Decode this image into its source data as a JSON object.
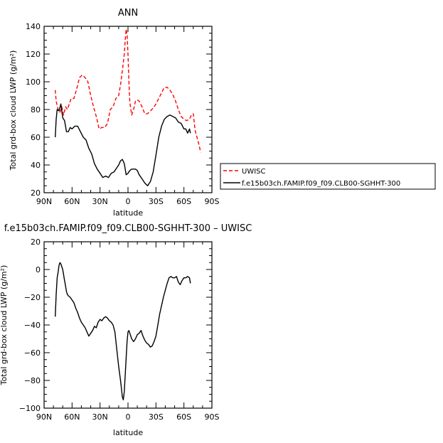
{
  "chart_data": [
    {
      "type": "line",
      "title": "ANN",
      "xlabel": "latitude",
      "ylabel": "Total grd-box cloud LWP (g/m²)",
      "xlim": [
        90,
        -90
      ],
      "ylim": [
        20,
        140
      ],
      "x_ticks": [
        "90N",
        "60N",
        "30N",
        "0",
        "30S",
        "60S",
        "90S"
      ],
      "y_ticks": [
        "20",
        "40",
        "60",
        "80",
        "100",
        "120",
        "140"
      ],
      "legend": [
        "UWISC",
        "f.e15b03ch.FAMIP.f09_f09.CLB00-SGHHT-300"
      ],
      "series": [
        {
          "name": "UWISC",
          "color": "#ff0000",
          "dash": "dashed",
          "x": [
            78,
            77,
            75,
            73,
            71,
            69,
            67,
            65,
            63,
            61,
            58,
            55,
            52,
            49,
            46,
            43,
            40,
            37,
            34,
            31,
            28,
            25,
            22,
            19,
            16,
            13,
            10,
            8,
            6,
            4,
            3,
            2,
            1,
            0,
            -1,
            -2,
            -4,
            -6,
            -8,
            -10,
            -12,
            -15,
            -18,
            -21,
            -24,
            -27,
            -30,
            -33,
            -36,
            -39,
            -42,
            -45,
            -48,
            -51,
            -54,
            -57,
            -60,
            -63,
            -66,
            -68,
            -70,
            -72,
            -74,
            -76,
            -78
          ],
          "y": [
            94,
            86,
            80,
            78,
            82,
            76,
            82,
            80,
            84,
            88,
            88,
            95,
            103,
            105,
            103,
            100,
            90,
            82,
            75,
            66,
            67,
            67,
            70,
            80,
            82,
            88,
            90,
            98,
            108,
            120,
            130,
            138,
            134,
            120,
            100,
            85,
            76,
            80,
            86,
            87,
            86,
            82,
            77,
            77,
            79,
            81,
            84,
            88,
            92,
            96,
            96,
            94,
            91,
            86,
            80,
            75,
            73,
            72,
            73,
            76,
            77,
            65,
            60,
            55,
            49
          ]
        },
        {
          "name": "f.e15b03ch.FAMIP.f09_f09.CLB00-SGHHT-300",
          "color": "#000000",
          "dash": "solid",
          "x": [
            78,
            77,
            76,
            74,
            72,
            70,
            68,
            66,
            64,
            62,
            60,
            57,
            54,
            51,
            48,
            45,
            42,
            39,
            36,
            33,
            30,
            27,
            24,
            21,
            18,
            15,
            12,
            10,
            8,
            6,
            4,
            2,
            0,
            -2,
            -4,
            -6,
            -8,
            -10,
            -12,
            -15,
            -18,
            -21,
            -24,
            -27,
            -30,
            -33,
            -36,
            -39,
            -42,
            -45,
            -48,
            -51,
            -54,
            -57,
            -60,
            -62,
            -64,
            -66,
            -67
          ],
          "y": [
            60,
            73,
            80,
            79,
            84,
            74,
            72,
            64,
            64,
            67,
            66,
            68,
            68,
            64,
            60,
            58,
            52,
            48,
            41,
            37,
            34,
            31,
            32,
            31,
            34,
            35,
            38,
            40,
            43,
            44,
            41,
            33,
            34,
            36,
            37,
            37,
            37,
            36,
            33,
            30,
            27,
            25,
            28,
            35,
            47,
            60,
            68,
            73,
            75,
            76,
            75,
            74,
            71,
            70,
            66,
            66,
            63,
            66,
            63
          ]
        }
      ]
    },
    {
      "type": "line",
      "title": "f.e15b03ch.FAMIP.f09_f09.CLB00-SGHHT-300 – UWISC",
      "xlabel": "latitude",
      "ylabel": "Total grd-box cloud LWP (g/m²)",
      "xlim": [
        90,
        -90
      ],
      "ylim": [
        -100,
        20
      ],
      "x_ticks": [
        "90N",
        "60N",
        "30N",
        "0",
        "30S",
        "60S",
        "90S"
      ],
      "y_ticks": [
        "−100",
        "−80",
        "−60",
        "−40",
        "−20",
        "0",
        "20"
      ],
      "series": [
        {
          "color": "#000000",
          "dash": "solid",
          "x": [
            78,
            77,
            76,
            75,
            74,
            73,
            72,
            71,
            70,
            69,
            68,
            67,
            66,
            65,
            64,
            62,
            60,
            58,
            56,
            54,
            52,
            50,
            48,
            46,
            44,
            42,
            40,
            38,
            36,
            34,
            32,
            30,
            28,
            26,
            24,
            22,
            20,
            18,
            16,
            14,
            12,
            10,
            8,
            6,
            5,
            4,
            3,
            2,
            1,
            0,
            -1,
            -2,
            -3,
            -4,
            -6,
            -8,
            -10,
            -12,
            -14,
            -16,
            -18,
            -20,
            -22,
            -24,
            -26,
            -28,
            -30,
            -32,
            -34,
            -36,
            -38,
            -40,
            -42,
            -44,
            -46,
            -48,
            -50,
            -52,
            -54,
            -56,
            -58,
            -60,
            -62,
            -64,
            -66,
            -67
          ],
          "y": [
            -34,
            -18,
            -6,
            -2,
            3,
            5,
            4,
            2,
            0,
            -4,
            -8,
            -12,
            -16,
            -18,
            -19,
            -20,
            -22,
            -24,
            -28,
            -31,
            -35,
            -38,
            -40,
            -42,
            -45,
            -48,
            -46,
            -44,
            -41,
            -42,
            -38,
            -36,
            -37,
            -35,
            -34,
            -35,
            -37,
            -38,
            -40,
            -45,
            -58,
            -70,
            -80,
            -92,
            -94,
            -88,
            -76,
            -64,
            -52,
            -45,
            -44,
            -46,
            -48,
            -50,
            -52,
            -50,
            -47,
            -46,
            -44,
            -48,
            -51,
            -53,
            -54,
            -56,
            -55,
            -52,
            -48,
            -40,
            -32,
            -26,
            -20,
            -15,
            -10,
            -6,
            -5,
            -6,
            -6,
            -5,
            -9,
            -11,
            -8,
            -6,
            -6,
            -5,
            -6,
            -10
          ]
        }
      ]
    }
  ]
}
